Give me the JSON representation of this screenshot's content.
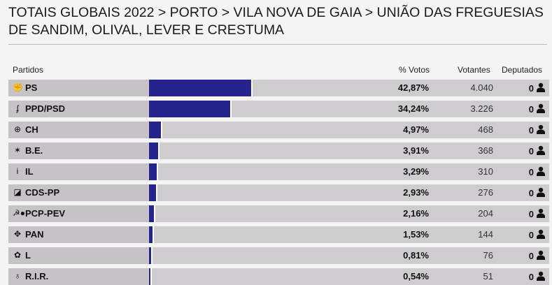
{
  "title": "TOTAIS GLOBAIS 2022 > PORTO > VILA NOVA DE GAIA > UNIÃO DAS FREGUESIAS DE SANDIM, OLIVAL, LEVER E CRESTUMA",
  "headers": {
    "partidos": "Partidos",
    "votos": "% Votos",
    "votantes": "Votantes",
    "deputados": "Deputados"
  },
  "accent": "#24248c",
  "rows": [
    {
      "name": "PS",
      "icon": "ps-logo-icon",
      "glyph": "✊",
      "pct": "42,87%",
      "value": 42.87,
      "votantes": "4.040",
      "deputados": "0"
    },
    {
      "name": "PPD/PSD",
      "icon": "psd-logo-icon",
      "glyph": "ʄ",
      "pct": "34,24%",
      "value": 34.24,
      "votantes": "3.226",
      "deputados": "0"
    },
    {
      "name": "CH",
      "icon": "ch-logo-icon",
      "glyph": "⊕",
      "pct": "4,97%",
      "value": 4.97,
      "votantes": "468",
      "deputados": "0"
    },
    {
      "name": "B.E.",
      "icon": "be-logo-icon",
      "glyph": "✶",
      "pct": "3,91%",
      "value": 3.91,
      "votantes": "368",
      "deputados": "0"
    },
    {
      "name": "IL",
      "icon": "il-logo-icon",
      "glyph": "i",
      "pct": "3,29%",
      "value": 3.29,
      "votantes": "310",
      "deputados": "0"
    },
    {
      "name": "CDS-PP",
      "icon": "cds-logo-icon",
      "glyph": "◪",
      "pct": "2,93%",
      "value": 2.93,
      "votantes": "276",
      "deputados": "0"
    },
    {
      "name": "PCP-PEV",
      "icon": "pcp-pev-logo-icon",
      "glyph": "☭●",
      "pct": "2,16%",
      "value": 2.16,
      "votantes": "204",
      "deputados": "0"
    },
    {
      "name": "PAN",
      "icon": "pan-logo-icon",
      "glyph": "✥",
      "pct": "1,53%",
      "value": 1.53,
      "votantes": "144",
      "deputados": "0"
    },
    {
      "name": "L",
      "icon": "livre-logo-icon",
      "glyph": "✿",
      "pct": "0,81%",
      "value": 0.81,
      "votantes": "76",
      "deputados": "0"
    },
    {
      "name": "R.I.R.",
      "icon": "rir-logo-icon",
      "glyph": "♁",
      "pct": "0,54%",
      "value": 0.54,
      "votantes": "51",
      "deputados": "0"
    }
  ]
}
